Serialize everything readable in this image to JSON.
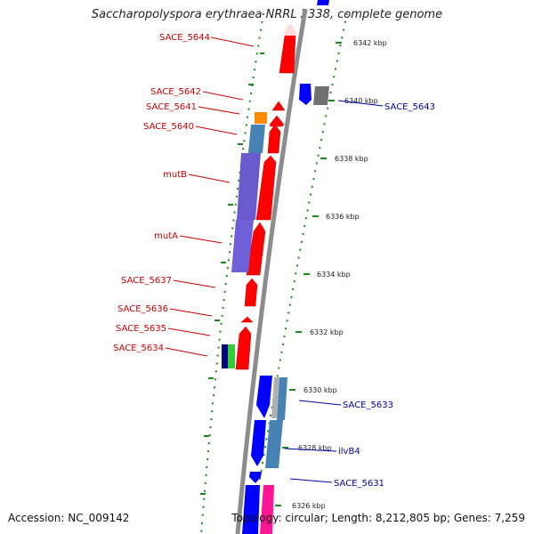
{
  "title": "Saccharopolyspora erythraea NRRL 2338, complete genome",
  "accession_text": "Accession: NC_009142",
  "topology_text": "Topology: circular; Length: 8,212,805 bp; Genes: 7,259",
  "colors": {
    "forward_gene": "#ff0000",
    "reverse_gene": "#0000ff",
    "backbone": "#888888",
    "tick_marks": "#008000",
    "label_forward": "#cc0000",
    "label_reverse": "#0000aa"
  },
  "kbp_ticks": [
    "6342 kbp",
    "6340 kbp",
    "6338 kbp",
    "6336 kbp",
    "6334 kbp",
    "6332 kbp",
    "6330 kbp",
    "6328 kbp",
    "6326 kbp"
  ],
  "forward_labels": [
    "SACE_5644",
    "SACE_5642",
    "SACE_5641",
    "SACE_5640",
    "mutB",
    "mutA",
    "SACE_5637",
    "SACE_5636",
    "SACE_5635",
    "SACE_5634"
  ],
  "reverse_labels": [
    "SACE_5643",
    "SACE_5633",
    "ilvB4",
    "SACE_5631"
  ]
}
